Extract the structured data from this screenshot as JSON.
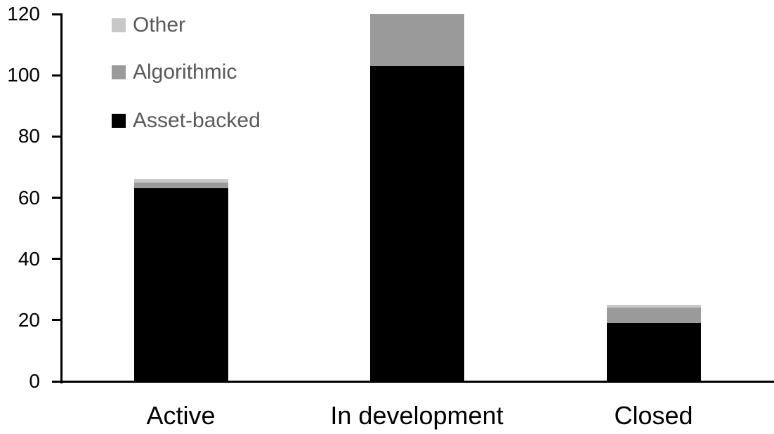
{
  "chart_data": {
    "type": "bar",
    "stacked": true,
    "categories": [
      "Active",
      "In development",
      "Closed"
    ],
    "series": [
      {
        "name": "Asset-backed",
        "color": "#000000",
        "values": [
          63,
          103,
          19
        ]
      },
      {
        "name": "Algorithmic",
        "color": "#9a9a9a",
        "values": [
          2,
          17,
          5
        ]
      },
      {
        "name": "Other",
        "color": "#c8c8c8",
        "values": [
          1,
          0,
          1
        ]
      }
    ],
    "ylim": [
      0,
      120
    ],
    "yticks": [
      0,
      20,
      40,
      60,
      80,
      100,
      120
    ],
    "xlabel": "",
    "ylabel": "",
    "title": "",
    "grid": false,
    "legend_position": "top-left-inside",
    "legend_order_top_to_bottom": [
      "Other",
      "Algorithmic",
      "Asset-backed"
    ],
    "axis_color": "#000000",
    "legend_text_color": "#595959"
  },
  "legend": {
    "items": [
      {
        "label": "Other",
        "color": "#c8c8c8"
      },
      {
        "label": "Algorithmic",
        "color": "#9a9a9a"
      },
      {
        "label": "Asset-backed",
        "color": "#000000"
      }
    ]
  },
  "x_axis": {
    "labels": [
      "Active",
      "In development",
      "Closed"
    ]
  },
  "y_axis": {
    "labels": [
      "0",
      "20",
      "40",
      "60",
      "80",
      "100",
      "120"
    ]
  }
}
